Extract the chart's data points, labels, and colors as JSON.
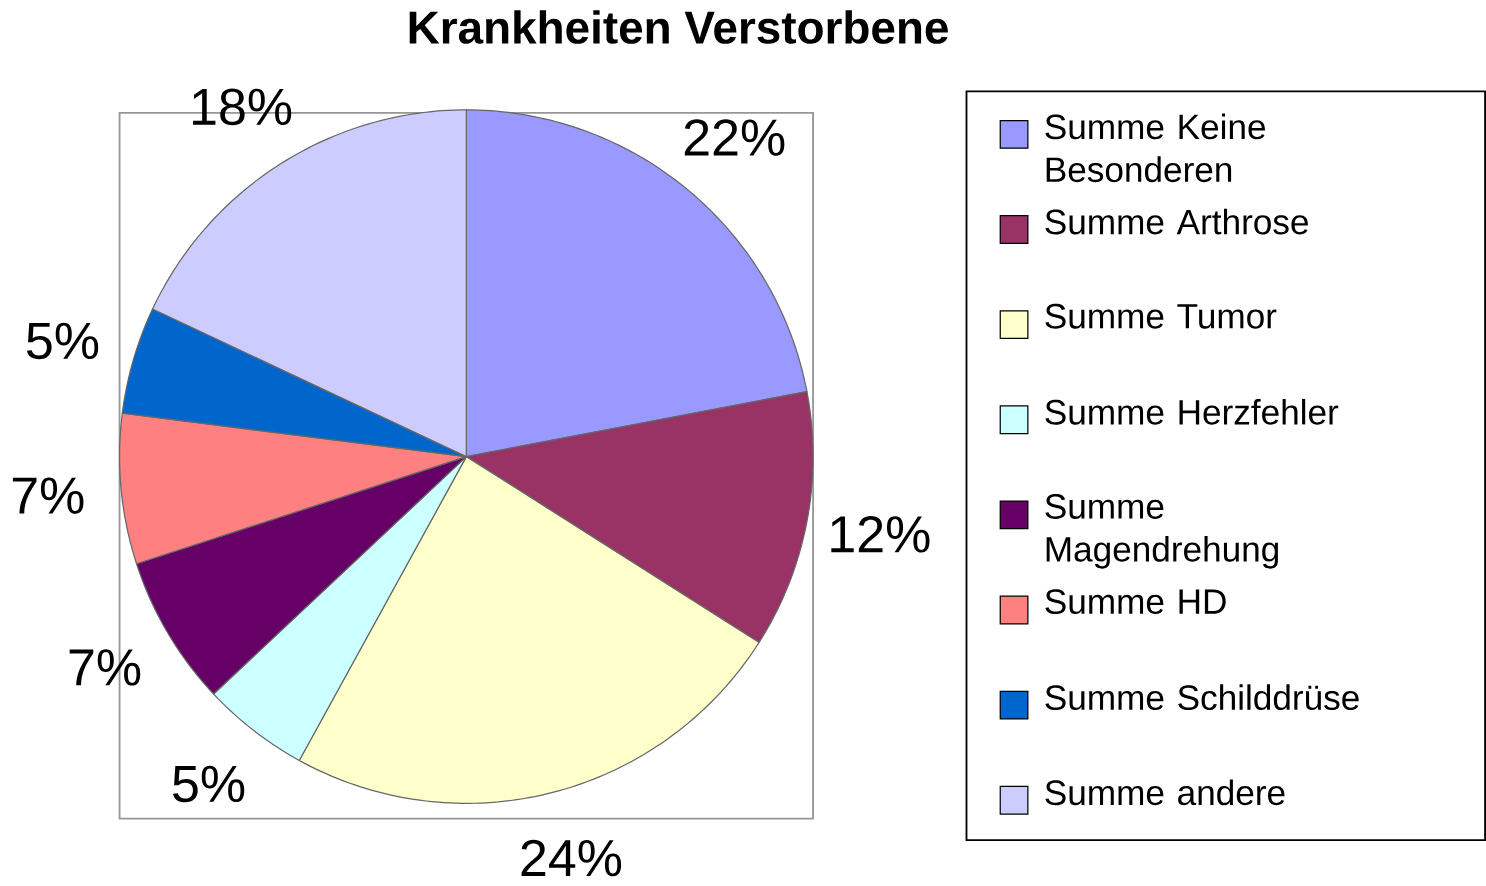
{
  "chart_data": {
    "type": "pie",
    "title": "Krankheiten Verstorbene",
    "categories": [
      "Summe Keine Besonderen",
      "Summe Arthrose",
      "Summe Tumor",
      "Summe Herzfehler",
      "Summe Magendrehung",
      "Summe HD",
      "Summe Schilddrüse",
      "Summe andere"
    ],
    "values": [
      22,
      12,
      24,
      5,
      7,
      7,
      5,
      18
    ],
    "colors": [
      "#9999ff",
      "#993366",
      "#ffffcc",
      "#ccffff",
      "#660066",
      "#ff8080",
      "#0066cc",
      "#ccccff"
    ],
    "value_labels": [
      "22%",
      "12%",
      "24%",
      "5%",
      "7%",
      "7%",
      "5%",
      "18%"
    ],
    "legend": "right"
  }
}
